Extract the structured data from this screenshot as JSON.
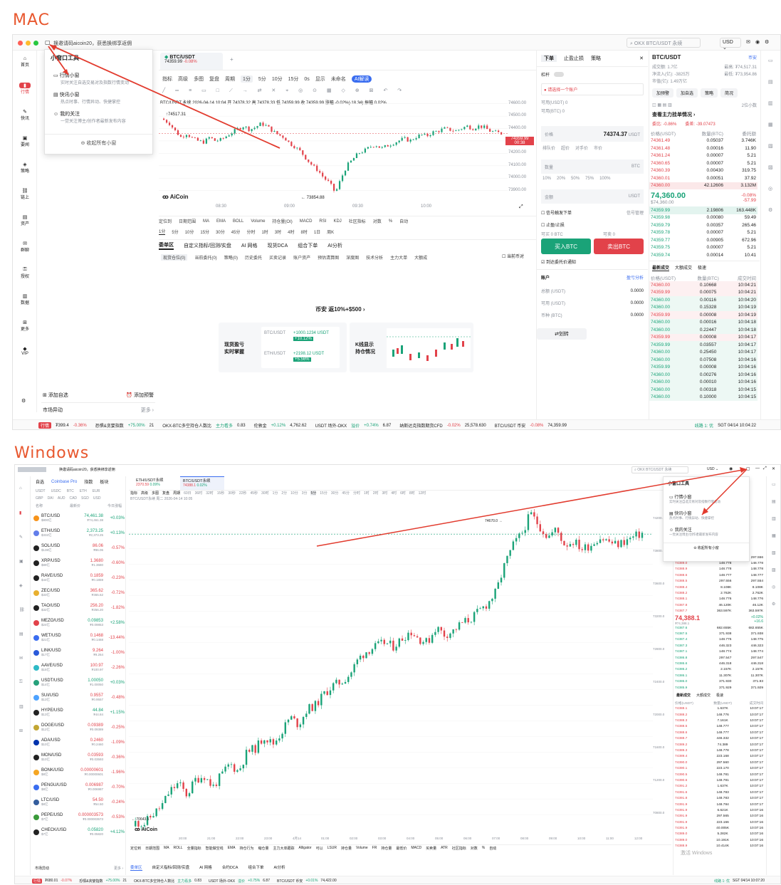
{
  "labels": {
    "mac": "MAC",
    "windows": "Windows"
  },
  "colors": {
    "up": "#1aa378",
    "down": "#e2424a",
    "accent": "#3a6df0",
    "arrow": "#e23b2e",
    "headline": "#e8572e"
  },
  "mac": {
    "notice": "换邀请码aicoin20，获悉换绑享返佣",
    "search_placeholder": "OKX BTC/USDT 永续",
    "currency": "USD",
    "sidebar": [
      "首页",
      "行情",
      "快讯",
      "要闻",
      "策略",
      "链上",
      "资产",
      "群聊",
      "授权",
      "数据",
      "更多",
      "VIP"
    ],
    "popup": {
      "title": "小窗口工具",
      "items": [
        {
          "name": "行情小窗",
          "desc": "实时关注自选交易对及指数行情变动"
        },
        {
          "name": "快讯小窗",
          "desc": "热点时事、行情异动、快捷掌控"
        },
        {
          "name": "我的关注",
          "desc": "一觉关注博主/创作者最新发布内容"
        }
      ],
      "collapse": "收起所有小窗"
    },
    "tab": {
      "pair": "BTC/USDT",
      "price": "74359.99",
      "change": "-0.08%"
    },
    "toolbar": [
      "指标",
      "高级",
      "多图",
      "复盘",
      "周期",
      "1分",
      "5分",
      "10分",
      "15分",
      "0s",
      "显示",
      "未命名",
      "AI解读"
    ],
    "chart": {
      "info": "BTC/USDT 永续  2026-04-14 10:04  开 74378.32  高 74378.33  低 74359.99  收 74359.99  涨幅 -0.02%(-18.34)  振幅 0.02%",
      "high_mark": "74517.31",
      "low_mark": "73854.88",
      "ylabels": [
        "74600.00",
        "74500.00",
        "74400.00",
        "74300.00",
        "74200.00",
        "74100.00",
        "74000.00",
        "73900.00"
      ],
      "xlabels": [
        "08:30",
        "09:00",
        "09:30",
        "10:00"
      ],
      "last_price": "74359.99",
      "countdown": "00:38",
      "logo": "AiCoin"
    },
    "chart_toolbar": [
      "定位到",
      "日期范围",
      "MA",
      "EMA",
      "BOLL",
      "Volume",
      "持仓量(OI)",
      "MACD",
      "RSI",
      "KDJ",
      "社区指标",
      "对数",
      "%",
      "自动"
    ],
    "periods": [
      "1分",
      "5分",
      "10分",
      "15分",
      "30分",
      "45分",
      "分时",
      "1时",
      "3时",
      "4时",
      "8时",
      "1日",
      "周K"
    ],
    "bottom_tabs": [
      "委单区",
      "自定义指标/回测/实盘",
      "AI 网格",
      "现货DCA",
      "组合下单",
      "AI分析"
    ],
    "sub_tabs": [
      "现货仓位(0)",
      "当前委托(0)",
      "策略(0)",
      "历史委托",
      "买卖记录",
      "账户资产",
      "预估清算图",
      "深度图",
      "技术分析",
      "主力大单",
      "大额成"
    ],
    "only_current": "当前币对",
    "promo": {
      "title": "币安 返10%+$500 ›",
      "card1": "现货盈亏\n实时掌握",
      "card2": "K线显示\n持仓情况",
      "p1": "+1000.1234 USDT",
      "p1b": "+10.12%",
      "p2": "+2198.12 USDT",
      "p2b": "+5.56%"
    },
    "order": {
      "tabs": [
        "下单",
        "止盈止损",
        "策略"
      ],
      "leverage": "杠杆",
      "account": "请选择一个账户",
      "avail1": "可用(USDT) 0",
      "avail2": "可用(BTC) 0",
      "price_label": "价格",
      "price": "74374.37",
      "unit": "USDT",
      "types": [
        "排队价",
        "超价",
        "对手价",
        "市价"
      ],
      "qty_label": "数量",
      "qty_unit": "BTC",
      "pcts": [
        "10%",
        "20%",
        "50%",
        "75%",
        "100%"
      ],
      "amount_label": "金额",
      "trigger": "信号触发下单",
      "signal": "信号管理",
      "tpsl": "止盈/止损",
      "can_buy": "可买 0 BTC",
      "can_sell": "可卖 0",
      "buy": "买入BTC",
      "sell": "卖出BTC",
      "notify": "到达委托价通知",
      "acct_title": "账户",
      "acct_link": "盈亏分析",
      "total": "总额 (USDT)",
      "avail": "可用 (USDT)",
      "coin": "币种 (BTC)",
      "zero": "0.0000",
      "transfer": "划转"
    },
    "ticker": {
      "pair": "BTC/USDT",
      "exchange": "币安",
      "vol": "成交额: 1.7亿",
      "high": "最高: ₮74,517.31",
      "inflow": "净流入(亿): -3825万",
      "low": "最低: ₮73,954.86",
      "mcap": "市值(亿): 1.49万亿",
      "btns": [
        "加预警",
        "加自选",
        "策略",
        "简况"
      ],
      "bigorder": "查看主力挂单情况 ›",
      "ratio": "委比: -0.86%",
      "diff": "委差: -39.07473",
      "cols": [
        "价格(USDT)",
        "数量(BTC)",
        "委托额"
      ],
      "depth": "2位小数"
    },
    "asks": [
      [
        "74361.49",
        "0.05037",
        "3.746K"
      ],
      [
        "74361.48",
        "0.00016",
        "11.90"
      ],
      [
        "74361.24",
        "0.00007",
        "5.21"
      ],
      [
        "74360.65",
        "0.00007",
        "5.21"
      ],
      [
        "74360.39",
        "0.00430",
        "319.75"
      ],
      [
        "74360.01",
        "0.00051",
        "37.92"
      ],
      [
        "74360.00",
        "42.12606",
        "3.132M"
      ]
    ],
    "mid": {
      "price": "74,360.00",
      "sub": "$74,360.00",
      "chg": "-0.08%",
      "chg2": "-57.99"
    },
    "bids": [
      [
        "74359.99",
        "2.19806",
        "163.448K"
      ],
      [
        "74359.98",
        "0.00080",
        "59.49"
      ],
      [
        "74359.79",
        "0.00357",
        "265.46"
      ],
      [
        "74359.78",
        "0.00007",
        "5.21"
      ],
      [
        "74359.77",
        "0.00905",
        "672.96"
      ],
      [
        "74359.75",
        "0.00007",
        "5.21"
      ],
      [
        "74359.74",
        "0.00014",
        "10.41"
      ]
    ],
    "trades_tabs": [
      "最新成交",
      "大额成交",
      "极速"
    ],
    "trades_cols": [
      "价格(USDT)",
      "数量(BTC)",
      "成交时间"
    ],
    "trades": [
      [
        "74360.00",
        "0.10668",
        "10:04:21",
        "r"
      ],
      [
        "74359.99",
        "0.00075",
        "10:04:21",
        "r"
      ],
      [
        "74360.00",
        "0.00116",
        "10:04:20",
        "g"
      ],
      [
        "74360.00",
        "0.15328",
        "10:04:19",
        "g"
      ],
      [
        "74359.99",
        "0.00008",
        "10:04:19",
        "r"
      ],
      [
        "74360.00",
        "0.00016",
        "10:04:18",
        "g"
      ],
      [
        "74360.00",
        "0.22447",
        "10:04:18",
        "g"
      ],
      [
        "74359.99",
        "0.00008",
        "10:04:17",
        "r"
      ],
      [
        "74359.99",
        "0.03557",
        "10:04:17",
        "g"
      ],
      [
        "74360.00",
        "0.25450",
        "10:04:17",
        "g"
      ],
      [
        "74360.00",
        "0.07508",
        "10:04:16",
        "g"
      ],
      [
        "74359.99",
        "0.00008",
        "10:04:16",
        "g"
      ],
      [
        "74360.00",
        "0.00276",
        "10:04:16",
        "g"
      ],
      [
        "74360.00",
        "0.00010",
        "10:04:16",
        "g"
      ],
      [
        "74360.00",
        "0.00318",
        "10:04:15",
        "g"
      ],
      [
        "74360.00",
        "0.10000",
        "10:04:15",
        "g"
      ]
    ],
    "left_footer": {
      "add": "添加自选",
      "alert": "添加预警",
      "move": "市场异动",
      "more": "更多 ›"
    },
    "status": {
      "tag": "行情",
      "rmb": "₮399.4",
      "rmbchg": "-0.36%",
      "fear": "恐惧&贪婪指数",
      "fearv": "+75.00%",
      "fearn": "21",
      "okx": "OKX-BTC多空持仓人数比",
      "okxtag": "主力看多",
      "okxv": "0.83",
      "lun": "伦敦金",
      "lunchg": "+0.12%",
      "lunv": "4,762.62",
      "usdt": "USDT 场外-OKX",
      "usdttag": "溢价",
      "usdtchg": "+0.74%",
      "usdtv": "6.87",
      "nas": "纳斯达克指数期货CFD",
      "naschg": "-0.02%",
      "nasv": "25,578.630",
      "btc": "BTC/USDT 币安",
      "btcchg": "-0.08%",
      "btcv": "74,359.99",
      "line": "线路 1: 优",
      "time": "SGT 04/14 10:04:22"
    }
  },
  "win": {
    "notice": "换邀请码aicoin20，获悉换绑享返佣",
    "search": "OKX BTC/USDT 永续",
    "currency": "USD",
    "left_tabs": [
      "自选",
      "Coinbase Pro",
      "指数",
      "板块"
    ],
    "filters": [
      "USDT",
      "USDC",
      "BTC",
      "ETH",
      "EUR"
    ],
    "filters2": [
      "GBP",
      "DAI",
      "AUD",
      "CAD",
      "SGD",
      "USD"
    ],
    "list_cols": [
      "名称",
      "最新价",
      "今日涨幅"
    ],
    "list": [
      [
        "BTC/USD",
        "$800亿",
        "74,461.38",
        "₮74,461.38",
        "+0.03%",
        "#f7931a"
      ],
      [
        "ETH/USD",
        "$332亿",
        "2,373.25",
        "₮2,373.25",
        "+0.13%",
        "#627eea"
      ],
      [
        "SOL/USD",
        "$138亿",
        "86.06",
        "₮86.06",
        "-0.57%",
        "#222"
      ],
      [
        "XRP/USD",
        "$89亿",
        "1.3680",
        "₮1.3680",
        "-0.60%",
        "#222"
      ],
      [
        "RAVE/USD",
        "$44亿",
        "0.1859",
        "₮0.1859",
        "-0.23%",
        "#222"
      ],
      [
        "ZEC/USD",
        "$33亿",
        "365.62",
        "₮365.62",
        "-0.72%",
        "#e8b030"
      ],
      [
        "TAO/USD",
        "$32亿",
        "256.20",
        "₮256.20",
        "-1.82%",
        "#222"
      ],
      [
        "MEZO/USD",
        "$24亿",
        "0.09853",
        "₮0.09853",
        "+2.58%",
        "#e2424a"
      ],
      [
        "WET/USD",
        "$21亿",
        "0.1468",
        "₮0.1468",
        "-13.44%",
        "#3a6df0"
      ],
      [
        "LINK/USD",
        "$17亿",
        "9.264",
        "₮9.264",
        "-1.00%",
        "#2a5ada"
      ],
      [
        "AAVE/USD",
        "$15亿",
        "100.97",
        "₮100.97",
        "-2.26%",
        "#2ebac6"
      ],
      [
        "USDT/USD",
        "$14亿",
        "1.00050",
        "₮1.00050",
        "+0.03%",
        "#26a17b"
      ],
      [
        "SUI/USD",
        "$13亿",
        "0.9557",
        "₮0.9557",
        "-0.48%",
        "#4da2ff"
      ],
      [
        "HYPE/USD",
        "$13亿",
        "44.84",
        "₮44.84",
        "+1.15%",
        "#222"
      ],
      [
        "DOGE/USD",
        "$12亿",
        "0.09389",
        "₮0.09389",
        "-0.25%",
        "#c2a633"
      ],
      [
        "ADA/USD",
        "$10亿",
        "0.2460",
        "₮0.2460",
        "-1.09%",
        "#0033ad"
      ],
      [
        "MON/USD",
        "$10亿",
        "0.03593",
        "₮0.03593",
        "-0.36%",
        "#222"
      ],
      [
        "BONK/USD",
        "$8亿",
        "0.00000601",
        "₮0.00000601",
        "-1.96%",
        "#f5a623"
      ],
      [
        "PENGU/USD",
        "$8亿",
        "0.006987",
        "₮0.006987",
        "-0.70%",
        "#3a6df0"
      ],
      [
        "LTC/USD",
        "$8亿",
        "54.50",
        "₮54.50",
        "-0.24%",
        "#345d9d"
      ],
      [
        "PEPE/USD",
        "$7亿",
        "0.000003573",
        "₮0.000003573",
        "-0.53%",
        "#3a9a3a"
      ],
      [
        "CHECK/USD",
        "$7亿",
        "0.05820",
        "₮0.05820",
        "+4.12%",
        "#222"
      ]
    ],
    "list_footer": {
      "move": "市场异动",
      "more": "更多 ›"
    },
    "tabs": [
      {
        "pair": "ETH/USDT永续",
        "price": "2370.59",
        "chg": "0.09%"
      },
      {
        "pair": "BTC/USDT永续",
        "price": "74388.1",
        "chg": "0.02%"
      }
    ],
    "toolbar": [
      "指标",
      "高级",
      "多图",
      "复盘",
      "周期"
    ],
    "periods": [
      "60日",
      "36时",
      "32时",
      "15秒",
      "30秒",
      "22秒",
      "45秒",
      "30时",
      "1分",
      "2分",
      "10分",
      "3分",
      "5分",
      "15分",
      "30分",
      "45分",
      "分时",
      "1时",
      "2时",
      "3时",
      "4时",
      "6时",
      "8时",
      "12时"
    ],
    "chart": {
      "info": "BTC/USDT永续  周二 2026-04-14 10:05",
      "high_mark": "74670.0",
      "low_mark": "70643.5",
      "ylabels": [
        "74200.0",
        "73800.0",
        "73600.0",
        "73200.0",
        "72800.0",
        "72400.0",
        "72000.0",
        "71600.0",
        "71200.0",
        "70800.0"
      ],
      "xlabels": [
        "20:00",
        "21:00",
        "22:00",
        "23:00",
        "4月14",
        "01:00",
        "02:00",
        "03:00",
        "04:00",
        "05:00",
        "06:00",
        "07:00",
        "08:00",
        "09:00",
        "10:00",
        "11:00",
        "12:00"
      ],
      "logo": "AiCoin"
    },
    "chart_toolbar": [
      "定位到",
      "日期范围",
      "MA",
      "ROLL",
      "全量指标",
      "智能做空线",
      "EMA",
      "持仓行为",
      "缩仓量",
      "主力大单跟踪",
      "Alligator",
      "可以",
      "LSUR",
      "持仓量",
      "Volume",
      "FR",
      "持仓量",
      "最低价",
      "MACD",
      "买卖量",
      "ATR",
      "社区指标",
      "对数",
      "%",
      "自动"
    ],
    "bottom_tabs": [
      "委单区",
      "自定义指标/回测/实盘",
      "AI 网格",
      "合约DCA",
      "组合下单",
      "AI分析"
    ],
    "popup": {
      "title": "小窗口工具",
      "items": [
        {
          "name": "行情小窗",
          "desc": "实时关注自选交易对及指数行情变动"
        },
        {
          "name": "快讯小窗",
          "desc": "热点时事、行情异动、快捷掌控"
        },
        {
          "name": "我的关注",
          "desc": "一觉关注博主/创作者最新发布内容"
        }
      ],
      "collapse": "收起所有小窗"
    },
    "asks": [
      [
        "74389.0",
        "297.556",
        "297.556"
      ],
      [
        "74389.0",
        "148.778",
        "148.778"
      ],
      [
        "74388.9",
        "148.778",
        "148.778"
      ],
      [
        "74388.6",
        "148.777",
        "148.777"
      ],
      [
        "74388.5",
        "297.556",
        "297.554"
      ],
      [
        "74388.4",
        "8.108K",
        "8.108K"
      ],
      [
        "74388.2",
        "2.762K",
        "2.762K"
      ],
      [
        "74388.1",
        "148.776",
        "148.776"
      ],
      [
        "74387.8",
        "46.120K",
        "46.12K"
      ],
      [
        "74387.7",
        "363.597K",
        "363.597K"
      ]
    ],
    "mid": {
      "price": "74,388.1",
      "sub": "₮74,388.1",
      "chg": "+0.02%",
      "chg2": "+16.6"
    },
    "bids": [
      [
        "74387.6",
        "682.655K",
        "682.655K"
      ],
      [
        "74387.5",
        "371.938",
        "371.938"
      ],
      [
        "74387.4",
        "148.775",
        "148.775"
      ],
      [
        "74387.3",
        "446.323",
        "446.323"
      ],
      [
        "74387.1",
        "148.774",
        "148.774"
      ],
      [
        "74386.8",
        "297.547",
        "297.547"
      ],
      [
        "74386.6",
        "446.318",
        "446.318"
      ],
      [
        "74386.2",
        "2.157K",
        "2.157K"
      ],
      [
        "74386.1",
        "11.307K",
        "11.307K"
      ],
      [
        "74386.0",
        "371.930",
        "371.93"
      ],
      [
        "74385.9",
        "371.929",
        "371.929"
      ]
    ],
    "trades_tabs": [
      "最新成交",
      "大额成交",
      "极速"
    ],
    "trades_cols": [
      "价格(USDT)",
      "数量(USDT)",
      "成交时间"
    ],
    "trades": [
      [
        "74388.1",
        "1.637K",
        "10:07:17"
      ],
      [
        "74388.2",
        "148.776",
        "10:07:17"
      ],
      [
        "74388.3",
        "7.161K",
        "10:07:17"
      ],
      [
        "74388.5",
        "148.777",
        "10:07:17"
      ],
      [
        "74388.6",
        "148.777",
        "10:07:17"
      ],
      [
        "74388.7",
        "446.332",
        "10:07:17"
      ],
      [
        "74389.2",
        "74.389",
        "10:07:17"
      ],
      [
        "74389.3",
        "148.778",
        "10:07:17"
      ],
      [
        "74389.4",
        "223.168",
        "10:07:17"
      ],
      [
        "74390.0",
        "297.560",
        "10:07:17"
      ],
      [
        "74390.1",
        "223.170",
        "10:07:17"
      ],
      [
        "74390.5",
        "148.781",
        "10:07:17"
      ],
      [
        "74390.6",
        "148.781",
        "10:07:17"
      ],
      [
        "74391.2",
        "1.637K",
        "10:07:17"
      ],
      [
        "74391.6",
        "148.783",
        "10:07:17"
      ],
      [
        "74391.8",
        "148.783",
        "10:07:17"
      ],
      [
        "74391.9",
        "148.784",
        "10:07:17"
      ],
      [
        "74391.9",
        "6.621K",
        "10:07:16"
      ],
      [
        "74391.9",
        "297.565",
        "10:07:16"
      ],
      [
        "74391.9",
        "223.166",
        "10:07:16"
      ],
      [
        "74391.9",
        "40.005K",
        "10:07:16"
      ],
      [
        "74389.0",
        "5.282K",
        "10:07:16"
      ],
      [
        "74389.0",
        "10.191K",
        "10:07:16"
      ],
      [
        "74388.9",
        "10.414K",
        "10:07:16"
      ]
    ],
    "status": {
      "tag": "行情",
      "rmb": "₮680.01",
      "rmbchg": "-0.07%",
      "fear": "恐惧&贪婪指数",
      "fearv": "+75.00%",
      "fearn": "21",
      "okx": "OKX-BTC多空持仓人数比",
      "okxtag": "主力看多",
      "okxv": "0.83",
      "usdt": "USDT 场外-OKX",
      "usdttag": "溢价",
      "usdtchg": "+0.75%",
      "usdtv": "6.87",
      "btc": "BTC/USDT 币安",
      "btcchg": "+0.01%",
      "btcv": "74,422.00",
      "line": "线路 1: 优",
      "time": "SGT 04/14 10:07:20",
      "watermark": "激活 Windows"
    }
  }
}
